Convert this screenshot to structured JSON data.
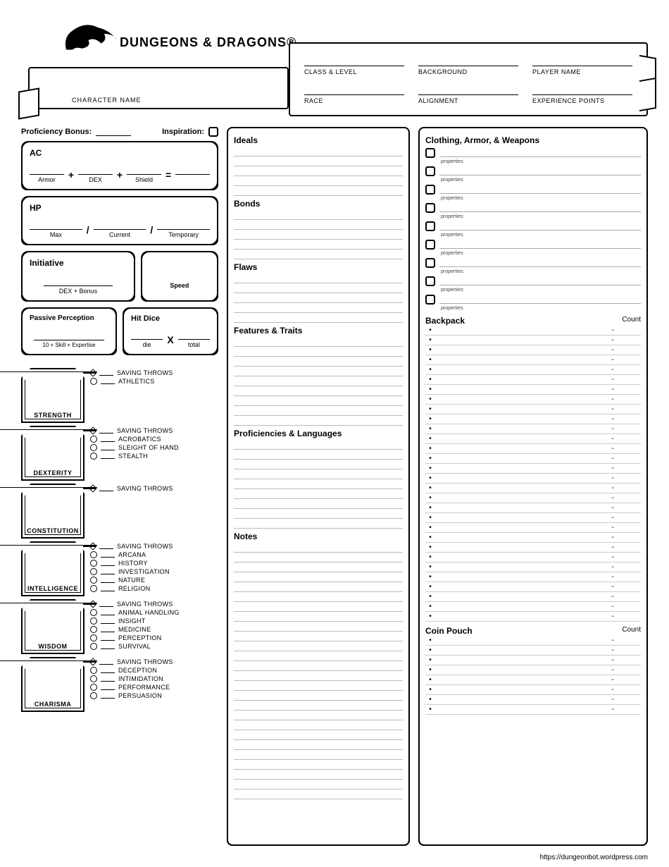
{
  "logo": "DUNGEONS & DRAGONS®",
  "banner_label": "CHARACTER NAME",
  "header_fields": {
    "r1": [
      "CLASS & LEVEL",
      "BACKGROUND",
      "PLAYER NAME"
    ],
    "r2": [
      "RACE",
      "ALIGNMENT",
      "EXPERIENCE POINTS"
    ]
  },
  "prof_label": "Proficiency Bonus:",
  "insp_label": "Inspiration:",
  "ac": {
    "title": "AC",
    "parts": [
      "Armor",
      "DEX",
      "Shield"
    ],
    "plus": "+",
    "eq": "="
  },
  "hp": {
    "title": "HP",
    "parts": [
      "Max",
      "Current",
      "Temporary"
    ],
    "sep": "/"
  },
  "init": {
    "title": "Initiative",
    "sub": "DEX + Bonus"
  },
  "speed": {
    "title": "Speed"
  },
  "pp": {
    "title": "Passive Perception",
    "sub": "10 + Skill + Expertise"
  },
  "hd": {
    "title": "Hit Dice",
    "x": "X",
    "parts": [
      "die",
      "total"
    ]
  },
  "abilities": [
    {
      "name": "STRENGTH",
      "skills": [
        "SAVING THROWS",
        "ATHLETICS"
      ]
    },
    {
      "name": "DEXTERITY",
      "skills": [
        "SAVING THROWS",
        "ACROBATICS",
        "SLEIGHT OF HAND",
        "STEALTH"
      ]
    },
    {
      "name": "CONSTITUTION",
      "skills": [
        "SAVING THROWS"
      ]
    },
    {
      "name": "INTELLIGENCE",
      "skills": [
        "SAVING THROWS",
        "ARCANA",
        "HISTORY",
        "INVESTIGATION",
        "NATURE",
        "RELIGION"
      ]
    },
    {
      "name": "WISDOM",
      "skills": [
        "SAVING THROWS",
        "ANIMAL HANDLING",
        "INSIGHT",
        "MEDICINE",
        "PERCEPTION",
        "SURVIVAL"
      ]
    },
    {
      "name": "CHARISMA",
      "skills": [
        "SAVING THROWS",
        "DECEPTION",
        "INTIMIDATION",
        "PERFORMANCE",
        "PERSUASION"
      ]
    }
  ],
  "mid_sections": [
    {
      "title": "Ideals",
      "lines": 5
    },
    {
      "title": "Bonds",
      "lines": 5
    },
    {
      "title": "Flaws",
      "lines": 5
    },
    {
      "title": "Features & Traits",
      "lines": 9
    },
    {
      "title": "Proficiencies & Languages",
      "lines": 9
    },
    {
      "title": "Notes",
      "lines": 26
    }
  ],
  "right": {
    "equip_title": "Clothing, Armor, & Weapons",
    "prop_label": "properties:",
    "equip_count": 9,
    "backpack": {
      "title": "Backpack",
      "count_label": "Count",
      "rows": 30
    },
    "coin": {
      "title": "Coin Pouch",
      "count_label": "Count",
      "rows": 8
    }
  },
  "footer": "https://dungeonbot.wordpress.com"
}
